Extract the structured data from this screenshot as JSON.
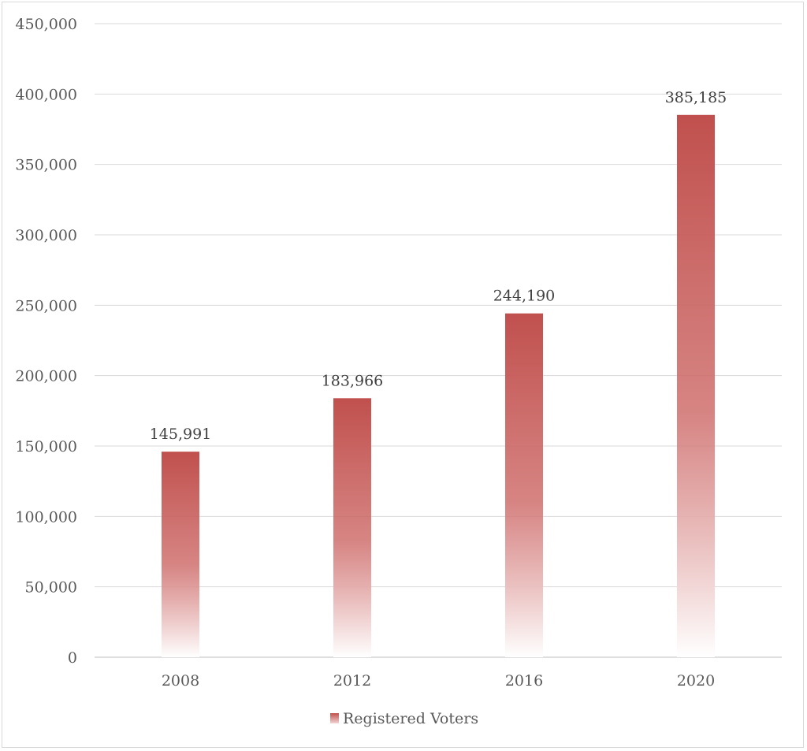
{
  "chart_data": {
    "type": "bar",
    "categories": [
      "2008",
      "2012",
      "2016",
      "2020"
    ],
    "series": [
      {
        "name": "Registered Voters",
        "values": [
          145991,
          183966,
          244190,
          385185
        ]
      }
    ],
    "value_labels": [
      "145,991",
      "183,966",
      "244,190",
      "385,185"
    ],
    "ylim": [
      0,
      450000
    ],
    "y_ticks": [
      0,
      50000,
      100000,
      150000,
      200000,
      250000,
      300000,
      350000,
      400000,
      450000
    ],
    "y_tick_labels": [
      "0",
      "50,000",
      "100,000",
      "150,000",
      "200,000",
      "250,000",
      "300,000",
      "350,000",
      "400,000",
      "450,000"
    ],
    "grid": true,
    "legend_position": "bottom",
    "colors": {
      "bar_top": "#c0504d",
      "bar_bottom": "#ffffff",
      "grid": "#d9d9d9",
      "axis": "#bfbfbf"
    }
  }
}
